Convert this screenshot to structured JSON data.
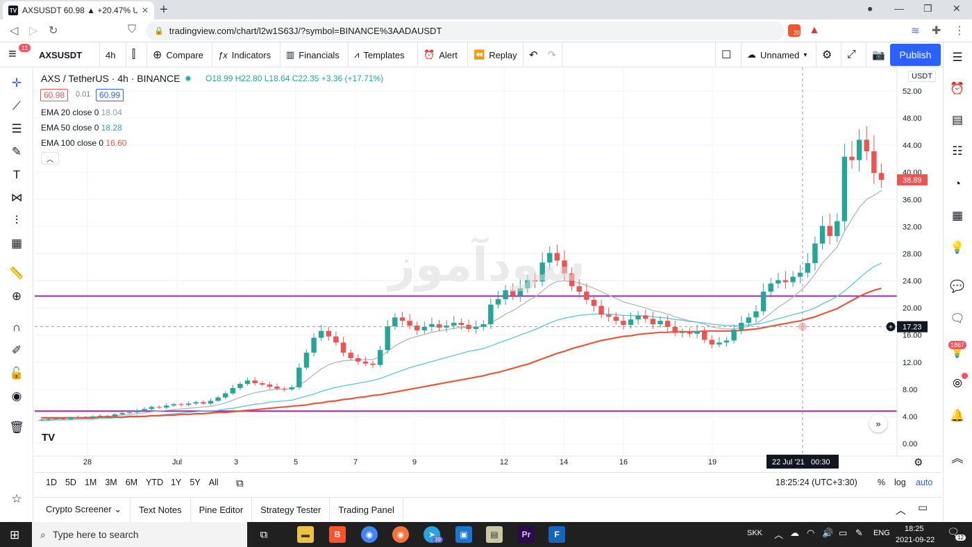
{
  "browser": {
    "tab_title": "AXSUSDT 60.98 ▲ +20.47% Unna",
    "tab_favicon": "TV",
    "url": "tradingview.com/chart/l2w1S63J/?symbol=BINANCE%3AADAUSDT",
    "brave_badge": "20"
  },
  "toolbar": {
    "symbol": "AXSUSDT",
    "interval": "4h",
    "compare": "Compare",
    "indicators": "Indicators",
    "financials": "Financials",
    "templates": "Templates",
    "alert": "Alert",
    "replay": "Replay",
    "layout_name": "Unnamed",
    "publish": "Publish",
    "menu_badge": "11"
  },
  "legend": {
    "title": "AXS / TetherUS · 4h · BINANCE",
    "ohlc": "O18.99 H22.80 L18.64 C22.35 +3.36 (+17.71%)",
    "bid": "60.98",
    "spread": "0.01",
    "ask": "60.99",
    "ema20_label": "EMA 20 close 0",
    "ema20_value": "18.04",
    "ema50_label": "EMA 50 close 0",
    "ema50_value": "18.28",
    "ema100_label": "EMA 100 close 0",
    "ema100_value": "16.60"
  },
  "colors": {
    "up": "#26a69a",
    "down": "#ef5350",
    "ema20": "#b2b5be",
    "ema50": "#5bc6d6",
    "ema100": "#e8563a",
    "hline": "#9c27b0",
    "accent": "#2962ff"
  },
  "watermark": "سودآموز",
  "chart_data": {
    "type": "candlestick",
    "currency": "USDT",
    "ylim": [
      0,
      52
    ],
    "y_ticks": [
      "52.00",
      "48.00",
      "44.00",
      "40.00",
      "36.00",
      "32.00",
      "28.00",
      "24.00",
      "20.00",
      "16.00",
      "12.00",
      "8.00",
      "4.00",
      "0.00"
    ],
    "x_ticks": [
      "28",
      "Jul",
      "3",
      "5",
      "7",
      "9",
      "12",
      "14",
      "16",
      "19"
    ],
    "crosshair_date": "22 Jul '21",
    "crosshair_time": "00:30",
    "crosshair_price": "17.23",
    "last_price": "38.89",
    "hlines": [
      {
        "label": "21.75",
        "value": 21.75
      },
      {
        "label": "4.79",
        "value": 4.79
      }
    ],
    "closes": [
      3.5,
      3.6,
      3.7,
      3.6,
      3.8,
      3.9,
      3.8,
      4.0,
      4.1,
      4.0,
      4.3,
      4.5,
      4.6,
      4.9,
      5.1,
      5.4,
      5.3,
      5.6,
      5.8,
      5.7,
      5.9,
      6.1,
      5.9,
      6.3,
      6.8,
      7.4,
      8.2,
      8.8,
      9.3,
      8.9,
      8.7,
      8.4,
      8.1,
      8.0,
      8.3,
      11.2,
      13.4,
      15.6,
      16.6,
      15.8,
      14.9,
      13.4,
      12.6,
      12.1,
      11.8,
      11.6,
      13.8,
      17.3,
      18.6,
      18.1,
      17.4,
      16.7,
      17.2,
      17.6,
      17.1,
      17.4,
      17.8,
      17.5,
      16.9,
      17.2,
      17.6,
      20.5,
      21.3,
      22.6,
      21.8,
      22.9,
      24.1,
      23.9,
      26.7,
      28.1,
      27.0,
      25.1,
      23.2,
      22.4,
      21.2,
      20.3,
      19.0,
      18.7,
      18.1,
      17.5,
      18.3,
      18.9,
      18.4,
      17.6,
      18.1,
      17.2,
      16.3,
      16.4,
      16.2,
      16.6,
      15.3,
      14.6,
      14.9,
      15.2,
      16.8,
      17.8,
      18.6,
      19.5,
      22.4,
      23.6,
      24.1,
      23.8,
      24.6,
      25.2,
      26.6,
      29.5,
      32.1,
      30.6,
      32.8,
      42.3,
      41.8,
      44.8,
      43.1,
      39.9,
      38.89
    ],
    "ema20": [
      3.5,
      3.6,
      3.6,
      3.7,
      3.8,
      3.8,
      3.9,
      3.9,
      4.0,
      4.0,
      4.1,
      4.2,
      4.3,
      4.4,
      4.5,
      4.7,
      4.8,
      4.9,
      5.0,
      5.1,
      5.2,
      5.3,
      5.4,
      5.5,
      5.7,
      6.0,
      6.4,
      6.8,
      7.2,
      7.5,
      7.7,
      7.9,
      8.0,
      8.0,
      8.1,
      8.6,
      9.3,
      10.2,
      11.0,
      11.6,
      12.0,
      12.2,
      12.3,
      12.3,
      12.4,
      12.4,
      12.8,
      13.6,
      14.4,
      15.0,
      15.5,
      15.8,
      16.1,
      16.4,
      16.6,
      16.8,
      17.0,
      17.1,
      17.1,
      17.2,
      17.3,
      17.8,
      18.4,
      19.1,
      19.6,
      20.3,
      21.0,
      21.6,
      22.5,
      23.4,
      23.9,
      24.0,
      23.9,
      23.7,
      23.3,
      22.9,
      22.4,
      21.9,
      21.4,
      20.9,
      20.6,
      20.3,
      20.0,
      19.6,
      19.4,
      19.1,
      18.7,
      18.4,
      18.1,
      17.9,
      17.6,
      17.2,
      17.0,
      16.9,
      16.9,
      17.1,
      17.3,
      17.7,
      18.4,
      19.2,
      20.1,
      20.8,
      21.6,
      22.5,
      23.6,
      25.0,
      26.6,
      27.8,
      29.0,
      31.3,
      33.1,
      34.8,
      36.0,
      36.6,
      37.3
    ],
    "ema50": [
      3.4,
      3.4,
      3.5,
      3.5,
      3.5,
      3.6,
      3.6,
      3.6,
      3.7,
      3.7,
      3.8,
      3.8,
      3.9,
      3.9,
      4.0,
      4.1,
      4.2,
      4.3,
      4.4,
      4.5,
      4.6,
      4.7,
      4.8,
      4.8,
      4.9,
      5.1,
      5.2,
      5.4,
      5.6,
      5.8,
      5.9,
      6.1,
      6.2,
      6.3,
      6.4,
      6.7,
      7.0,
      7.3,
      7.7,
      8.0,
      8.3,
      8.5,
      8.7,
      8.9,
      9.1,
      9.3,
      9.6,
      10.0,
      10.4,
      10.8,
      11.2,
      11.5,
      11.8,
      12.1,
      12.4,
      12.7,
      13.0,
      13.3,
      13.6,
      13.8,
      14.0,
      14.4,
      14.8,
      15.2,
      15.6,
      16.0,
      16.4,
      16.8,
      17.3,
      17.8,
      18.2,
      18.5,
      18.7,
      18.9,
      19.0,
      19.1,
      19.1,
      19.1,
      19.0,
      18.9,
      18.9,
      18.8,
      18.8,
      18.7,
      18.6,
      18.5,
      18.3,
      18.2,
      18.0,
      17.9,
      17.8,
      17.6,
      17.5,
      17.4,
      17.4,
      17.4,
      17.5,
      17.6,
      17.8,
      18.1,
      18.4,
      18.7,
      19.0,
      19.3,
      19.6,
      20.0,
      20.6,
      21.1,
      21.7,
      22.5,
      23.4,
      24.4,
      25.3,
      26.1,
      26.6
    ],
    "ema100": [
      3.8,
      3.8,
      3.8,
      3.8,
      3.8,
      3.8,
      3.8,
      3.8,
      3.9,
      3.9,
      3.9,
      3.9,
      4.0,
      4.0,
      4.0,
      4.1,
      4.1,
      4.2,
      4.2,
      4.3,
      4.3,
      4.4,
      4.4,
      4.5,
      4.6,
      4.6,
      4.7,
      4.8,
      4.9,
      5.0,
      5.1,
      5.2,
      5.3,
      5.4,
      5.5,
      5.6,
      5.7,
      5.9,
      6.0,
      6.2,
      6.3,
      6.5,
      6.6,
      6.8,
      6.9,
      7.1,
      7.2,
      7.4,
      7.6,
      7.8,
      8.0,
      8.2,
      8.4,
      8.6,
      8.8,
      9.0,
      9.2,
      9.4,
      9.6,
      9.8,
      10.0,
      10.3,
      10.5,
      10.8,
      11.1,
      11.4,
      11.7,
      12.1,
      12.5,
      12.9,
      13.3,
      13.6,
      14.0,
      14.3,
      14.6,
      14.9,
      15.2,
      15.4,
      15.6,
      15.8,
      15.9,
      16.1,
      16.2,
      16.3,
      16.4,
      16.4,
      16.5,
      16.5,
      16.5,
      16.5,
      16.6,
      16.6,
      16.6,
      16.6,
      16.6,
      16.7,
      16.8,
      16.9,
      17.1,
      17.3,
      17.5,
      17.7,
      17.9,
      18.1,
      18.4,
      18.7,
      19.1,
      19.5,
      19.9,
      20.5,
      21.1,
      21.7,
      22.2,
      22.6,
      22.9
    ]
  },
  "range_buttons": [
    "1D",
    "5D",
    "1M",
    "3M",
    "6M",
    "YTD",
    "1Y",
    "5Y",
    "All"
  ],
  "bottom": {
    "clock": "18:25:24 (UTC+3:30)",
    "percent": "%",
    "log": "log",
    "auto": "auto"
  },
  "panel_tabs": [
    "Crypto Screener",
    "Text Notes",
    "Pine Editor",
    "Strategy Tester",
    "Trading Panel"
  ],
  "right_badge": "1867",
  "taskbar": {
    "search_placeholder": "Type here to search",
    "lang1": "SKK",
    "lang2": "ENG",
    "time": "18:25",
    "date": "2021-09-22",
    "notif": "12",
    "telegram_badge": "39"
  }
}
